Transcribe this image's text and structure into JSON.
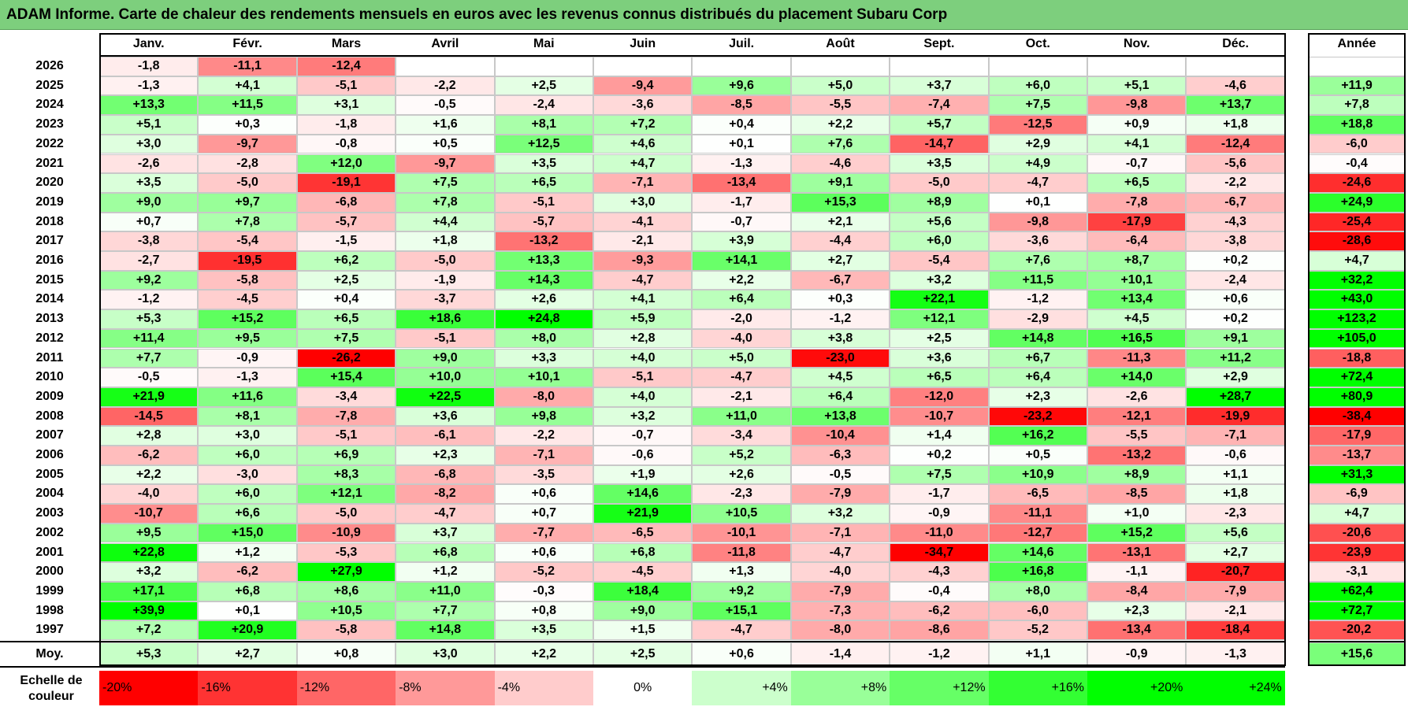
{
  "title": "ADAM Informe. Carte de chaleur des rendements mensuels en euros avec les revenus connus distribués du placement Subaru Corp",
  "chart_data": {
    "type": "heatmap",
    "title": "ADAM Informe. Carte de chaleur des rendements mensuels en euros avec les revenus connus distribués du placement Subaru Corp",
    "columns": [
      "Janv.",
      "Févr.",
      "Mars",
      "Avril",
      "Mai",
      "Juin",
      "Juil.",
      "Août",
      "Sept.",
      "Oct.",
      "Nov.",
      "Déc."
    ],
    "year_header": "Année",
    "rows": [
      {
        "year": "2026",
        "months": [
          "-1,8",
          "-11,1",
          "-12,4",
          "",
          "",
          "",
          "",
          "",
          "",
          "",
          "",
          ""
        ],
        "annual": ""
      },
      {
        "year": "2025",
        "months": [
          "-1,3",
          "+4,1",
          "-5,1",
          "-2,2",
          "+2,5",
          "-9,4",
          "+9,6",
          "+5,0",
          "+3,7",
          "+6,0",
          "+5,1",
          "-4,6"
        ],
        "annual": "+11,9"
      },
      {
        "year": "2024",
        "months": [
          "+13,3",
          "+11,5",
          "+3,1",
          "-0,5",
          "-2,4",
          "-3,6",
          "-8,5",
          "-5,5",
          "-7,4",
          "+7,5",
          "-9,8",
          "+13,7"
        ],
        "annual": "+7,8"
      },
      {
        "year": "2023",
        "months": [
          "+5,1",
          "+0,3",
          "-1,8",
          "+1,6",
          "+8,1",
          "+7,2",
          "+0,4",
          "+2,2",
          "+5,7",
          "-12,5",
          "+0,9",
          "+1,8"
        ],
        "annual": "+18,8"
      },
      {
        "year": "2022",
        "months": [
          "+3,0",
          "-9,7",
          "-0,8",
          "+0,5",
          "+12,5",
          "+4,6",
          "+0,1",
          "+7,6",
          "-14,7",
          "+2,9",
          "+4,1",
          "-12,4"
        ],
        "annual": "-6,0"
      },
      {
        "year": "2021",
        "months": [
          "-2,6",
          "-2,8",
          "+12,0",
          "-9,7",
          "+3,5",
          "+4,7",
          "-1,3",
          "-4,6",
          "+3,5",
          "+4,9",
          "-0,7",
          "-5,6"
        ],
        "annual": "-0,4"
      },
      {
        "year": "2020",
        "months": [
          "+3,5",
          "-5,0",
          "-19,1",
          "+7,5",
          "+6,5",
          "-7,1",
          "-13,4",
          "+9,1",
          "-5,0",
          "-4,7",
          "+6,5",
          "-2,2"
        ],
        "annual": "-24,6"
      },
      {
        "year": "2019",
        "months": [
          "+9,0",
          "+9,7",
          "-6,8",
          "+7,8",
          "-5,1",
          "+3,0",
          "-1,7",
          "+15,3",
          "+8,9",
          "+0,1",
          "-7,8",
          "-6,7"
        ],
        "annual": "+24,9"
      },
      {
        "year": "2018",
        "months": [
          "+0,7",
          "+7,8",
          "-5,7",
          "+4,4",
          "-5,7",
          "-4,1",
          "-0,7",
          "+2,1",
          "+5,6",
          "-9,8",
          "-17,9",
          "-4,3"
        ],
        "annual": "-25,4"
      },
      {
        "year": "2017",
        "months": [
          "-3,8",
          "-5,4",
          "-1,5",
          "+1,8",
          "-13,2",
          "-2,1",
          "+3,9",
          "-4,4",
          "+6,0",
          "-3,6",
          "-6,4",
          "-3,8"
        ],
        "annual": "-28,6"
      },
      {
        "year": "2016",
        "months": [
          "-2,7",
          "-19,5",
          "+6,2",
          "-5,0",
          "+13,3",
          "-9,3",
          "+14,1",
          "+2,7",
          "-5,4",
          "+7,6",
          "+8,7",
          "+0,2"
        ],
        "annual": "+4,7"
      },
      {
        "year": "2015",
        "months": [
          "+9,2",
          "-5,8",
          "+2,5",
          "-1,9",
          "+14,3",
          "-4,7",
          "+2,2",
          "-6,7",
          "+3,2",
          "+11,5",
          "+10,1",
          "-2,4"
        ],
        "annual": "+32,2"
      },
      {
        "year": "2014",
        "months": [
          "-1,2",
          "-4,5",
          "+0,4",
          "-3,7",
          "+2,6",
          "+4,1",
          "+6,4",
          "+0,3",
          "+22,1",
          "-1,2",
          "+13,4",
          "+0,6"
        ],
        "annual": "+43,0"
      },
      {
        "year": "2013",
        "months": [
          "+5,3",
          "+15,2",
          "+6,5",
          "+18,6",
          "+24,8",
          "+5,9",
          "-2,0",
          "-1,2",
          "+12,1",
          "-2,9",
          "+4,5",
          "+0,2"
        ],
        "annual": "+123,2"
      },
      {
        "year": "2012",
        "months": [
          "+11,4",
          "+9,5",
          "+7,5",
          "-5,1",
          "+8,0",
          "+2,8",
          "-4,0",
          "+3,8",
          "+2,5",
          "+14,8",
          "+16,5",
          "+9,1"
        ],
        "annual": "+105,0"
      },
      {
        "year": "2011",
        "months": [
          "+7,7",
          "-0,9",
          "-26,2",
          "+9,0",
          "+3,3",
          "+4,0",
          "+5,0",
          "-23,0",
          "+3,6",
          "+6,7",
          "-11,3",
          "+11,2"
        ],
        "annual": "-18,8"
      },
      {
        "year": "2010",
        "months": [
          "-0,5",
          "-1,3",
          "+15,4",
          "+10,0",
          "+10,1",
          "-5,1",
          "-4,7",
          "+4,5",
          "+6,5",
          "+6,4",
          "+14,0",
          "+2,9"
        ],
        "annual": "+72,4"
      },
      {
        "year": "2009",
        "months": [
          "+21,9",
          "+11,6",
          "-3,4",
          "+22,5",
          "-8,0",
          "+4,0",
          "-2,1",
          "+6,4",
          "-12,0",
          "+2,3",
          "-2,6",
          "+28,7"
        ],
        "annual": "+80,9"
      },
      {
        "year": "2008",
        "months": [
          "-14,5",
          "+8,1",
          "-7,8",
          "+3,6",
          "+9,8",
          "+3,2",
          "+11,0",
          "+13,8",
          "-10,7",
          "-23,2",
          "-12,1",
          "-19,9"
        ],
        "annual": "-38,4"
      },
      {
        "year": "2007",
        "months": [
          "+2,8",
          "+3,0",
          "-5,1",
          "-6,1",
          "-2,2",
          "-0,7",
          "-3,4",
          "-10,4",
          "+1,4",
          "+16,2",
          "-5,5",
          "-7,1"
        ],
        "annual": "-17,9"
      },
      {
        "year": "2006",
        "months": [
          "-6,2",
          "+6,0",
          "+6,9",
          "+2,3",
          "-7,1",
          "-0,6",
          "+5,2",
          "-6,3",
          "+0,2",
          "+0,5",
          "-13,2",
          "-0,6"
        ],
        "annual": "-13,7"
      },
      {
        "year": "2005",
        "months": [
          "+2,2",
          "-3,0",
          "+8,3",
          "-6,8",
          "-3,5",
          "+1,9",
          "+2,6",
          "-0,5",
          "+7,5",
          "+10,9",
          "+8,9",
          "+1,1"
        ],
        "annual": "+31,3"
      },
      {
        "year": "2004",
        "months": [
          "-4,0",
          "+6,0",
          "+12,1",
          "-8,2",
          "+0,6",
          "+14,6",
          "-2,3",
          "-7,9",
          "-1,7",
          "-6,5",
          "-8,5",
          "+1,8"
        ],
        "annual": "-6,9"
      },
      {
        "year": "2003",
        "months": [
          "-10,7",
          "+6,6",
          "-5,0",
          "-4,7",
          "+0,7",
          "+21,9",
          "+10,5",
          "+3,2",
          "-0,9",
          "-11,1",
          "+1,0",
          "-2,3"
        ],
        "annual": "+4,7"
      },
      {
        "year": "2002",
        "months": [
          "+9,5",
          "+15,0",
          "-10,9",
          "+3,7",
          "-7,7",
          "-6,5",
          "-10,1",
          "-7,1",
          "-11,0",
          "-12,7",
          "+15,2",
          "+5,6"
        ],
        "annual": "-20,6"
      },
      {
        "year": "2001",
        "months": [
          "+22,8",
          "+1,2",
          "-5,3",
          "+6,8",
          "+0,6",
          "+6,8",
          "-11,8",
          "-4,7",
          "-34,7",
          "+14,6",
          "-13,1",
          "+2,7"
        ],
        "annual": "-23,9"
      },
      {
        "year": "2000",
        "months": [
          "+3,2",
          "-6,2",
          "+27,9",
          "+1,2",
          "-5,2",
          "-4,5",
          "+1,3",
          "-4,0",
          "-4,3",
          "+16,8",
          "-1,1",
          "-20,7"
        ],
        "annual": "-3,1"
      },
      {
        "year": "1999",
        "months": [
          "+17,1",
          "+6,8",
          "+8,6",
          "+11,0",
          "-0,3",
          "+18,4",
          "+9,2",
          "-7,9",
          "-0,4",
          "+8,0",
          "-8,4",
          "-7,9"
        ],
        "annual": "+62,4"
      },
      {
        "year": "1998",
        "months": [
          "+39,9",
          "+0,1",
          "+10,5",
          "+7,7",
          "+0,8",
          "+9,0",
          "+15,1",
          "-7,3",
          "-6,2",
          "-6,0",
          "+2,3",
          "-2,1"
        ],
        "annual": "+72,7"
      },
      {
        "year": "1997",
        "months": [
          "+7,2",
          "+20,9",
          "-5,8",
          "+14,8",
          "+3,5",
          "+1,5",
          "-4,7",
          "-8,0",
          "-8,6",
          "-5,2",
          "-13,4",
          "-18,4"
        ],
        "annual": "-20,2"
      }
    ],
    "average": {
      "label": "Moy.",
      "months": [
        "+5,3",
        "+2,7",
        "+0,8",
        "+3,0",
        "+2,2",
        "+2,5",
        "+0,6",
        "-1,4",
        "-1,2",
        "+1,1",
        "-0,9",
        "-1,3"
      ],
      "annual": "+15,6"
    },
    "color_scale": {
      "label": "Echelle de couleur",
      "stops": [
        "-20%",
        "-16%",
        "-12%",
        "-8%",
        "-4%",
        "0%",
        "+4%",
        "+8%",
        "+12%",
        "+16%",
        "+20%",
        "+24%"
      ],
      "values": [
        -20,
        -16,
        -12,
        -8,
        -4,
        0,
        4,
        8,
        12,
        16,
        20,
        24
      ]
    },
    "colors": {
      "negative_max": "#ff0000",
      "neutral": "#ffffff",
      "positive_max": "#00ff00",
      "title_bar": "#7dcf7d"
    }
  }
}
